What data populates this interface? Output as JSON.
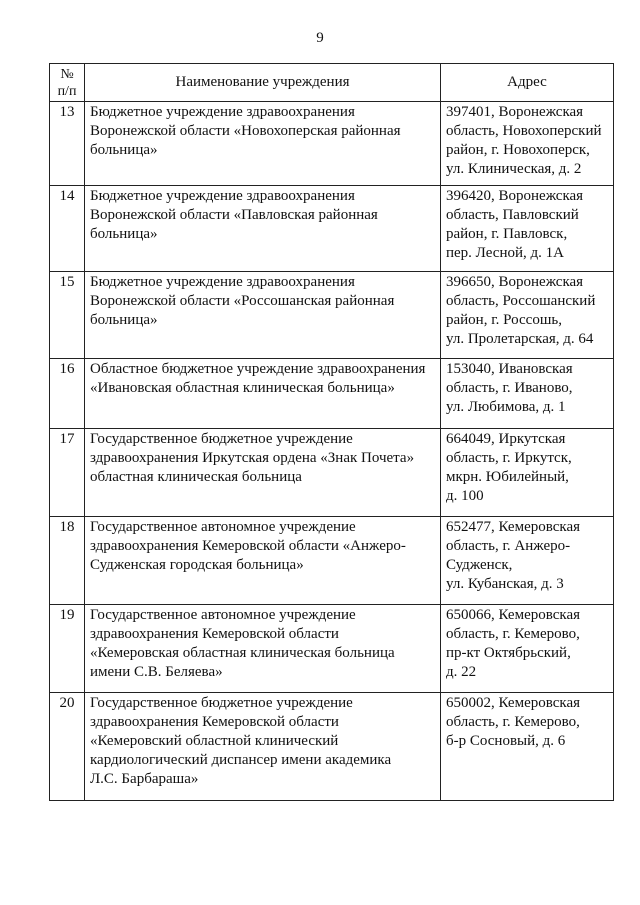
{
  "page_number": "9",
  "table": {
    "headers": {
      "num": "№ п/п",
      "num_line1": "№",
      "num_line2": "п/п",
      "name": "Наименование учреждения",
      "address": "Адрес"
    },
    "rows": [
      {
        "num": "13",
        "name": [
          "Бюджетное учреждение здравоохранения",
          "Воронежской области «Новохоперская районная",
          "больница»"
        ],
        "address": [
          "397401, Воронежская",
          "область, Новохоперский",
          "район, г. Новохоперск,",
          "ул. Клиническая, д. 2"
        ]
      },
      {
        "num": "14",
        "name": [
          "Бюджетное учреждение здравоохранения",
          "Воронежской области «Павловская районная",
          "больница»"
        ],
        "address": [
          "396420, Воронежская",
          "область, Павловский",
          "район, г. Павловск,",
          "пер. Лесной, д. 1А"
        ]
      },
      {
        "num": "15",
        "name": [
          "Бюджетное учреждение здравоохранения",
          "Воронежской области «Россошанская районная",
          "больница»"
        ],
        "address": [
          "396650, Воронежская",
          "область, Россошанский",
          "район, г. Россошь,",
          "ул. Пролетарская, д. 64"
        ]
      },
      {
        "num": "16",
        "name": [
          "Областное бюджетное учреждение здравоохранения",
          "«Ивановская областная клиническая больница»"
        ],
        "address": [
          "153040, Ивановская",
          "область, г. Иваново,",
          "ул. Любимова, д. 1"
        ]
      },
      {
        "num": "17",
        "name": [
          "Государственное бюджетное учреждение",
          "здравоохранения Иркутская ордена «Знак Почета»",
          "областная клиническая больница"
        ],
        "address": [
          "664049, Иркутская",
          "область, г. Иркутск,",
          "мкрн. Юбилейный,",
          "д. 100"
        ]
      },
      {
        "num": "18",
        "name": [
          "Государственное автономное учреждение",
          "здравоохранения Кемеровской области «Анжеро-",
          "Судженская городская больница»"
        ],
        "address": [
          "652477, Кемеровская",
          "область, г. Анжеро-",
          "Судженск,",
          "ул. Кубанская, д. 3"
        ]
      },
      {
        "num": "19",
        "name": [
          "Государственное автономное учреждение",
          "здравоохранения Кемеровской области",
          "«Кемеровская областная клиническая больница",
          "имени С.В. Беляева»"
        ],
        "address": [
          "650066, Кемеровская",
          "область, г. Кемерово,",
          "пр-кт Октябрьский,",
          "д. 22"
        ]
      },
      {
        "num": "20",
        "name": [
          "Государственное бюджетное учреждение",
          "здравоохранения Кемеровской области",
          "«Кемеровский областной клинический",
          "кардиологический диспансер имени академика",
          "Л.С. Барбараша»"
        ],
        "address": [
          "650002, Кемеровская",
          "область, г. Кемерово,",
          "б-р Сосновый, д. 6"
        ]
      }
    ]
  }
}
